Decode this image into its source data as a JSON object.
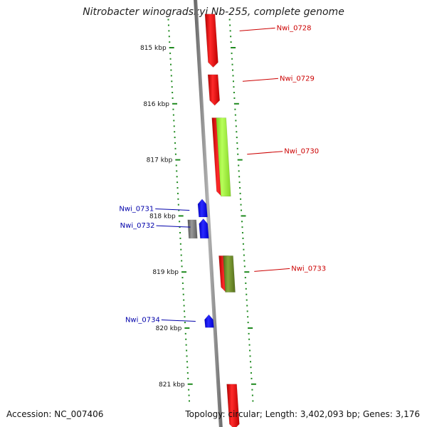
{
  "title": "Nitrobacter winogradskyi Nb-255, complete genome",
  "accession_text": "Accession: NC_007406",
  "summary_text": "Topology: circular; Length: 3,402,093 bp; Genes: 3,176",
  "colors": {
    "backbone": "#8c8c8c",
    "tick": "#1f8a1f",
    "forward_gene": "#ff0000",
    "reverse_gene": "#0000ff",
    "other_gene": "#707070",
    "cds_light": "#99ff33",
    "cds_dark": "#6b8e23",
    "label_forward": "#cc0000",
    "label_reverse": "#0000aa"
  },
  "scale": {
    "unit": "kbp",
    "major_ticks": [
      {
        "label": "815 kbp",
        "kbp": 815
      },
      {
        "label": "816 kbp",
        "kbp": 816
      },
      {
        "label": "817 kbp",
        "kbp": 817
      },
      {
        "label": "818 kbp",
        "kbp": 818
      },
      {
        "label": "819 kbp",
        "kbp": 819
      },
      {
        "label": "820 kbp",
        "kbp": 820
      },
      {
        "label": "821 kbp",
        "kbp": 821
      }
    ],
    "minor_per_major": 10
  },
  "features": [
    {
      "type": "gene",
      "strand": "forward",
      "start_kbp": 814.4,
      "end_kbp": 815.35,
      "color": "#ff0000"
    },
    {
      "type": "gene",
      "strand": "forward",
      "start_kbp": 815.48,
      "end_kbp": 816.03,
      "color": "#ff0000"
    },
    {
      "type": "gene",
      "strand": "forward",
      "start_kbp": 816.25,
      "end_kbp": 817.65,
      "color": "#ff0000"
    },
    {
      "type": "cds",
      "strand": "forward",
      "start_kbp": 816.25,
      "end_kbp": 817.65,
      "color": "#99ff33"
    },
    {
      "type": "gene",
      "strand": "reverse",
      "start_kbp": 817.7,
      "end_kbp": 818.02,
      "color": "#0000ff"
    },
    {
      "type": "gene",
      "strand": "reverse",
      "start_kbp": 818.05,
      "end_kbp": 818.4,
      "color": "#0000ff"
    },
    {
      "type": "gene",
      "strand": "reverse",
      "start_kbp": 818.07,
      "end_kbp": 818.4,
      "color": "#707070"
    },
    {
      "type": "gene",
      "strand": "forward",
      "start_kbp": 818.71,
      "end_kbp": 819.36,
      "color": "#ff0000"
    },
    {
      "type": "cds",
      "strand": "forward",
      "start_kbp": 818.71,
      "end_kbp": 819.36,
      "color": "#6b8e23"
    },
    {
      "type": "gene",
      "strand": "reverse",
      "start_kbp": 819.76,
      "end_kbp": 819.99,
      "color": "#0000ff"
    },
    {
      "type": "gene",
      "strand": "forward",
      "start_kbp": 821.0,
      "end_kbp": 821.8,
      "color": "#ff0000"
    }
  ],
  "labels": [
    {
      "text": "Nwi_0728",
      "side": "right",
      "kbp": 814.7
    },
    {
      "text": "Nwi_0729",
      "side": "right",
      "kbp": 815.6
    },
    {
      "text": "Nwi_0730",
      "side": "right",
      "kbp": 816.9
    },
    {
      "text": "Nwi_0731",
      "side": "left",
      "kbp": 817.9
    },
    {
      "text": "Nwi_0732",
      "side": "left",
      "kbp": 818.2
    },
    {
      "text": "Nwi_0733",
      "side": "right",
      "kbp": 818.99
    },
    {
      "text": "Nwi_0734",
      "side": "left",
      "kbp": 819.88
    }
  ]
}
